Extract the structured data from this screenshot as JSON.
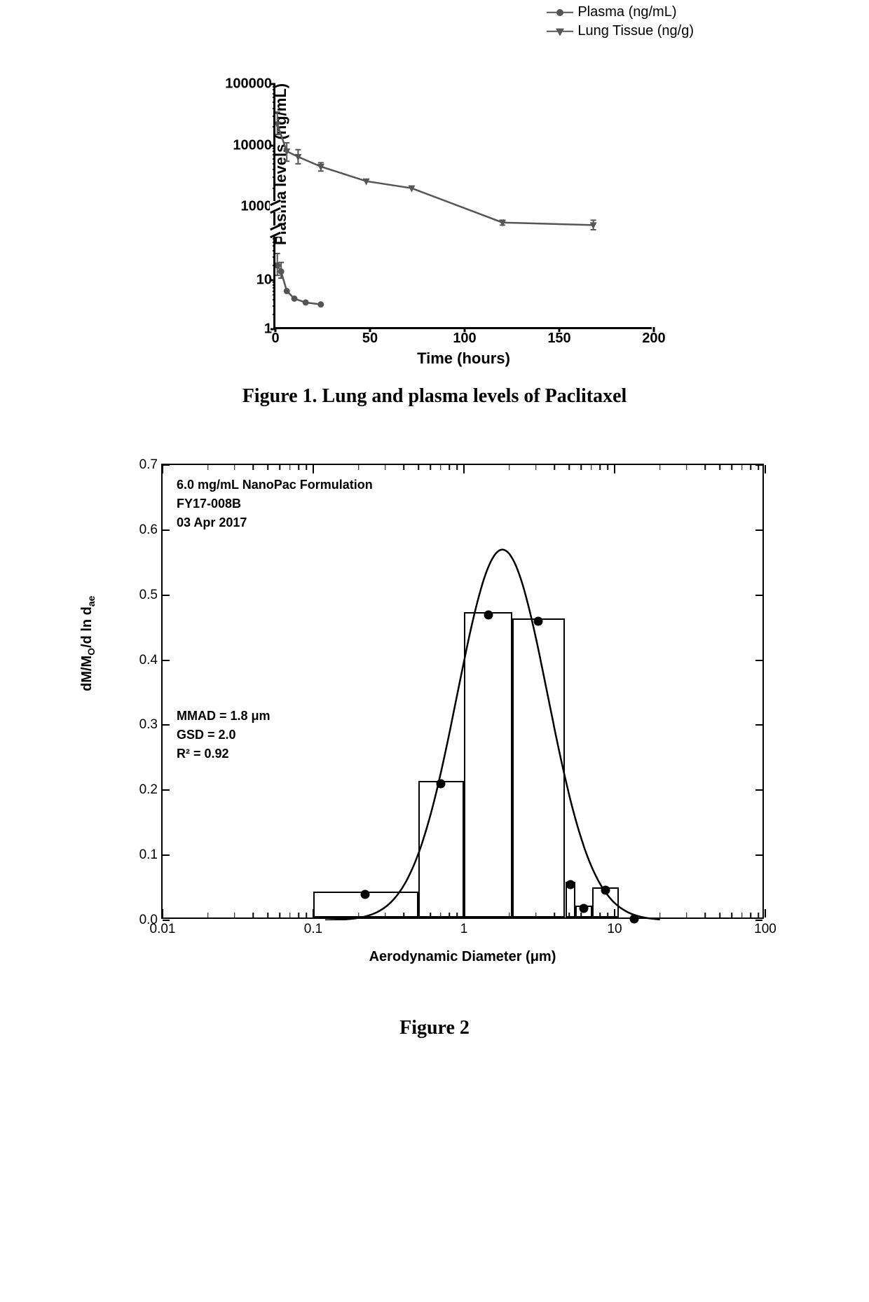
{
  "figure1": {
    "caption": "Figure 1. Lung and plasma levels of Paclitaxel",
    "ylabel": "Plasma levels (ng/mL)",
    "xlabel": "Time (hours)",
    "legend": [
      {
        "label": "Plasma (ng/mL)",
        "marker": "circle"
      },
      {
        "label": "Lung Tissue (ng/g)",
        "marker": "tri"
      }
    ],
    "xaxis": {
      "min": 0,
      "max": 200,
      "ticks": [
        0,
        50,
        100,
        150,
        200
      ]
    },
    "yaxis": {
      "scale": "log-broken",
      "lower": {
        "log_min": 0,
        "log_max": 2,
        "ticks": [
          1,
          10
        ]
      },
      "upper": {
        "log_min": 3,
        "log_max": 5,
        "ticks": [
          1000,
          10000,
          100000
        ]
      },
      "break_frac_low": 0.4,
      "break_frac_high": 0.5
    },
    "series": {
      "plasma": {
        "marker": "circle",
        "color": "#555555",
        "points": [
          {
            "x": 1,
            "y": 20,
            "err": 15
          },
          {
            "x": 3,
            "y": 15,
            "err": 8
          },
          {
            "x": 6,
            "y": 6,
            "err": 0
          },
          {
            "x": 10,
            "y": 4.2,
            "err": 0
          },
          {
            "x": 16,
            "y": 3.5,
            "err": 0
          },
          {
            "x": 24,
            "y": 3.2,
            "err": 0
          }
        ]
      },
      "lung": {
        "marker": "tri",
        "color": "#555555",
        "points": [
          {
            "x": 1,
            "y": 22000,
            "err_lo": 15000,
            "err_hi": 35000
          },
          {
            "x": 6,
            "y": 8000,
            "err_lo": 5500,
            "err_hi": 11000
          },
          {
            "x": 12,
            "y": 6500,
            "err_lo": 5000,
            "err_hi": 8500
          },
          {
            "x": 24,
            "y": 4500,
            "err_lo": 3800,
            "err_hi": 5200
          },
          {
            "x": 48,
            "y": 2600,
            "err_lo": 2600,
            "err_hi": 2600
          },
          {
            "x": 72,
            "y": 2000,
            "err_lo": 2000,
            "err_hi": 2000
          },
          {
            "x": 120,
            "y": 550,
            "err_lo": 500,
            "err_hi": 600
          },
          {
            "x": 168,
            "y": 500,
            "err_lo": 420,
            "err_hi": 600
          }
        ]
      }
    }
  },
  "figure2": {
    "caption": "Figure 2",
    "ylabel_html": "dM/M<sub>O</sub>/d ln d<sub>ae</sub>",
    "xlabel_html": "Aerodynamic Diameter (μm)",
    "annot_top": {
      "line1": "6.0 mg/mL NanoPac Formulation",
      "line2": "FY17-008B",
      "line3": "03 Apr 2017"
    },
    "annot_stats": {
      "mmad_label": "MMAD =",
      "mmad_value": "1.8 μm",
      "gsd_label": "GSD  =",
      "gsd_value": " 2.0",
      "r2_label": "R²    =",
      "r2_value": " 0.92"
    },
    "xaxis": {
      "scale": "log",
      "log_min": -2,
      "log_max": 2,
      "major_ticks": [
        0.01,
        0.1,
        1,
        10,
        100
      ],
      "major_labels": [
        "0.01",
        "0.1",
        "1",
        "10",
        "100"
      ]
    },
    "yaxis": {
      "min": 0.0,
      "max": 0.7,
      "step": 0.1,
      "ticks": [
        0.0,
        0.1,
        0.2,
        0.3,
        0.4,
        0.5,
        0.6,
        0.7
      ]
    },
    "bars": [
      {
        "x_lo": 0.1,
        "x_hi": 0.5,
        "y": 0.04
      },
      {
        "x_lo": 0.5,
        "x_hi": 1.0,
        "y": 0.21
      },
      {
        "x_lo": 1.0,
        "x_hi": 2.1,
        "y": 0.47
      },
      {
        "x_lo": 2.1,
        "x_hi": 4.7,
        "y": 0.46
      },
      {
        "x_lo": 4.7,
        "x_hi": 5.5,
        "y": 0.055
      },
      {
        "x_lo": 5.5,
        "x_hi": 7.1,
        "y": 0.018
      },
      {
        "x_lo": 7.1,
        "x_hi": 10.7,
        "y": 0.046
      }
    ],
    "points": [
      {
        "x": 0.22,
        "y": 0.04
      },
      {
        "x": 0.7,
        "y": 0.21
      },
      {
        "x": 1.45,
        "y": 0.47
      },
      {
        "x": 3.1,
        "y": 0.46
      },
      {
        "x": 5.1,
        "y": 0.055
      },
      {
        "x": 6.25,
        "y": 0.018
      },
      {
        "x": 8.7,
        "y": 0.046
      },
      {
        "x": 13.5,
        "y": 0.002
      }
    ],
    "fit_curve": {
      "mu_ln": 0.5878,
      "sigma_ln": 0.6931,
      "amplitude": 0.57
    }
  }
}
